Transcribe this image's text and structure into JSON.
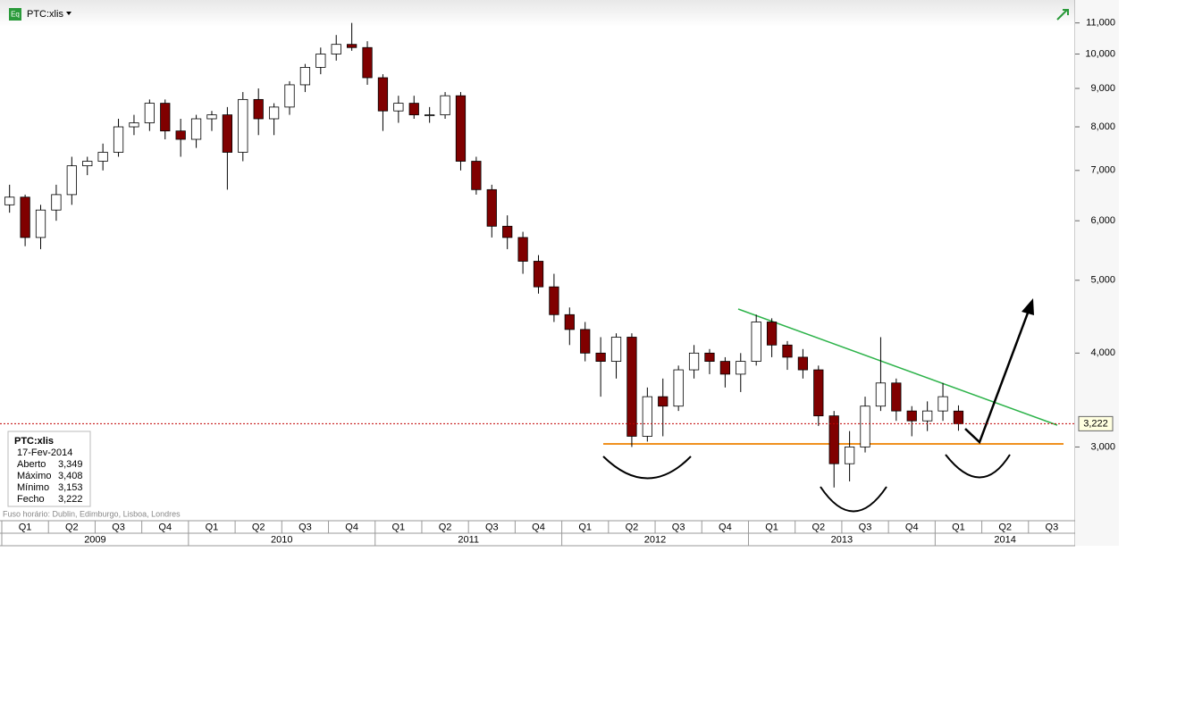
{
  "header": {
    "icon": "Eq",
    "symbol": "PTC:xlis"
  },
  "info": {
    "title": "PTC:xlis",
    "date": "17-Fev-2014",
    "labels": [
      "Aberto",
      "Máximo",
      "Mínimo",
      "Fecho"
    ],
    "values": [
      3349,
      3408,
      3153,
      3222
    ],
    "value_labels": [
      "3,349",
      "3,408",
      "3,153",
      "3,222"
    ]
  },
  "footer": "Fuso horário: Dublin, Edimburgo, Lisboa, Londres",
  "chart_data": {
    "type": "candlestick",
    "yscale": "log",
    "up_color": "#ffffff",
    "down_color": "#800000",
    "xlim": [
      "2009-01",
      "2014-10"
    ],
    "ylim": [
      2400,
      11800
    ],
    "yticks": [
      {
        "value": 3000,
        "label": "3,000"
      },
      {
        "value": 4000,
        "label": "4,000"
      },
      {
        "value": 5000,
        "label": "5,000"
      },
      {
        "value": 6000,
        "label": "6,000"
      },
      {
        "value": 7000,
        "label": "7,000"
      },
      {
        "value": 8000,
        "label": "8,000"
      },
      {
        "value": 9000,
        "label": "9,000"
      },
      {
        "value": 10000,
        "label": "10,000"
      },
      {
        "value": 11000,
        "label": "11,000"
      }
    ],
    "last_price": 3222,
    "last_price_label": "3,222",
    "quarters": [
      "Q1",
      "Q2",
      "Q3",
      "Q4",
      "Q1",
      "Q2",
      "Q3",
      "Q4",
      "Q1",
      "Q2",
      "Q3",
      "Q4",
      "Q1",
      "Q2",
      "Q3",
      "Q4",
      "Q1",
      "Q2",
      "Q3",
      "Q4",
      "Q1",
      "Q2",
      "Q3"
    ],
    "years": [
      "2009",
      "2010",
      "2011",
      "2012",
      "2013",
      "2014"
    ],
    "x": [
      "2009-01",
      "2009-02",
      "2009-03",
      "2009-04",
      "2009-05",
      "2009-06",
      "2009-07",
      "2009-08",
      "2009-09",
      "2009-10",
      "2009-11",
      "2009-12",
      "2010-01",
      "2010-02",
      "2010-03",
      "2010-04",
      "2010-05",
      "2010-06",
      "2010-07",
      "2010-08",
      "2010-09",
      "2010-10",
      "2010-11",
      "2010-12",
      "2011-01",
      "2011-02",
      "2011-03",
      "2011-04",
      "2011-05",
      "2011-06",
      "2011-07",
      "2011-08",
      "2011-09",
      "2011-10",
      "2011-11",
      "2011-12",
      "2012-01",
      "2012-02",
      "2012-03",
      "2012-04",
      "2012-05",
      "2012-06",
      "2012-07",
      "2012-08",
      "2012-09",
      "2012-10",
      "2012-11",
      "2012-12",
      "2013-01",
      "2013-02",
      "2013-03",
      "2013-04",
      "2013-05",
      "2013-06",
      "2013-07",
      "2013-08",
      "2013-09",
      "2013-10",
      "2013-11",
      "2013-12",
      "2014-01",
      "2014-02"
    ],
    "open": [
      6300,
      6450,
      5700,
      6200,
      6500,
      7100,
      7200,
      7400,
      8000,
      8100,
      8600,
      7900,
      7700,
      8200,
      8300,
      7400,
      8700,
      8200,
      8500,
      9100,
      9600,
      10000,
      10300,
      10200,
      9300,
      8400,
      8600,
      8300,
      8300,
      8800,
      7200,
      6600,
      5900,
      5700,
      5300,
      4900,
      4500,
      4300,
      4000,
      3900,
      4200,
      3100,
      3500,
      3400,
      3800,
      4000,
      3900,
      3750,
      3900,
      4400,
      4100,
      3950,
      3800,
      3300,
      2850,
      3000,
      3400,
      3650,
      3350,
      3250,
      3350,
      3349
    ],
    "high": [
      6700,
      6500,
      6300,
      6700,
      7300,
      7300,
      7600,
      8200,
      8300,
      8700,
      8700,
      8200,
      8300,
      8400,
      8500,
      8900,
      9000,
      8600,
      9200,
      9700,
      10200,
      10600,
      11000,
      10400,
      9400,
      8800,
      8800,
      8500,
      8900,
      8900,
      7300,
      6700,
      6100,
      5800,
      5400,
      5100,
      4600,
      4400,
      4200,
      4250,
      4250,
      3600,
      3700,
      3850,
      4100,
      4050,
      3950,
      4000,
      4500,
      4450,
      4150,
      4050,
      3850,
      3350,
      3150,
      3500,
      4200,
      3700,
      3400,
      3450,
      3650,
      3408
    ],
    "low": [
      6150,
      5550,
      5500,
      6000,
      6300,
      6900,
      7000,
      7300,
      7800,
      7900,
      7700,
      7300,
      7500,
      7900,
      6600,
      7200,
      7800,
      7800,
      8300,
      8900,
      9400,
      9800,
      10100,
      9100,
      7900,
      8100,
      8200,
      8100,
      8200,
      7000,
      6500,
      5700,
      5500,
      5100,
      4800,
      4400,
      4100,
      3900,
      3500,
      3700,
      3000,
      3050,
      3100,
      3350,
      3700,
      3750,
      3600,
      3550,
      3850,
      3950,
      3800,
      3700,
      3200,
      2650,
      2700,
      2950,
      3350,
      3250,
      3100,
      3150,
      3250,
      3153
    ],
    "close": [
      6450,
      5700,
      6200,
      6500,
      7100,
      7200,
      7400,
      8000,
      8100,
      8600,
      7900,
      7700,
      8200,
      8300,
      7400,
      8700,
      8200,
      8500,
      9100,
      9600,
      10000,
      10300,
      10200,
      9300,
      8400,
      8600,
      8300,
      8300,
      8800,
      7200,
      6600,
      5900,
      5700,
      5300,
      4900,
      4500,
      4300,
      4000,
      3900,
      4200,
      3100,
      3500,
      3400,
      3800,
      4000,
      3900,
      3750,
      3900,
      4400,
      4100,
      3950,
      3800,
      3300,
      2850,
      3000,
      3400,
      3650,
      3350,
      3250,
      3350,
      3500,
      3222
    ]
  }
}
